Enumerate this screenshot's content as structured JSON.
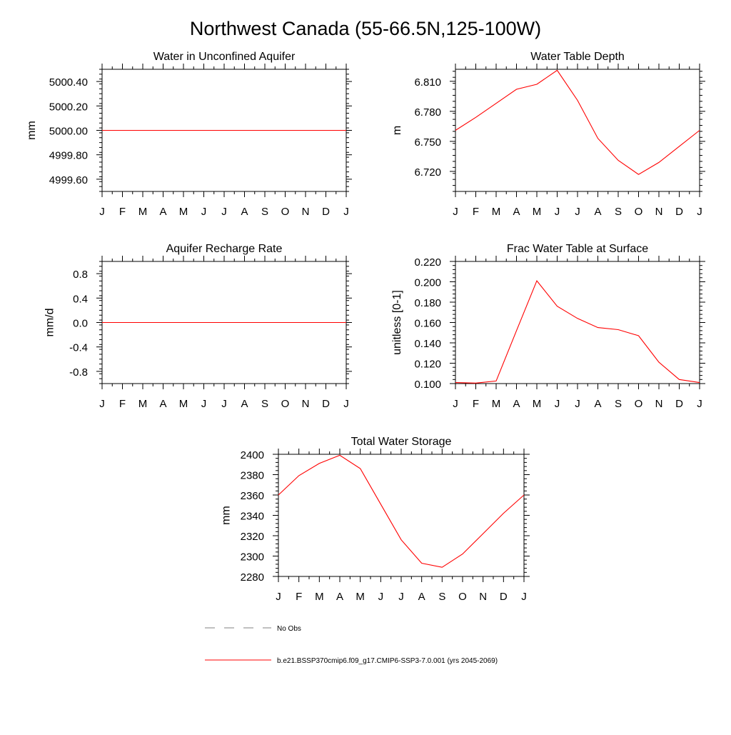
{
  "page_title": "Northwest Canada (55-66.5N,125-100W)",
  "months": [
    "J",
    "F",
    "M",
    "A",
    "M",
    "J",
    "J",
    "A",
    "S",
    "O",
    "N",
    "D",
    "J"
  ],
  "legend": {
    "obs_label": "No Obs",
    "obs_color": "#808080",
    "model_label": "b.e21.BSSP370cmip6.f09_g17.CMIP6-SSP3-7.0.001 (yrs 2045-2069)",
    "model_color": "#ff0000"
  },
  "chart_data": [
    {
      "type": "line",
      "title": "Water in Unconfined Aquifer",
      "ylabel": "mm",
      "ylim": [
        4999.5,
        5000.5
      ],
      "yticks": [
        4999.6,
        4999.8,
        5000.0,
        5000.2,
        5000.4
      ],
      "ytick_labels": [
        "4999.60",
        "4999.80",
        "5000.00",
        "5000.20",
        "5000.40"
      ],
      "series": [
        {
          "color": "#ff0000",
          "values": [
            5000,
            5000,
            5000,
            5000,
            5000,
            5000,
            5000,
            5000,
            5000,
            5000,
            5000,
            5000,
            5000
          ]
        }
      ]
    },
    {
      "type": "line",
      "title": "Water Table Depth",
      "ylabel": "m",
      "ylim": [
        6.7,
        6.822
      ],
      "yticks": [
        6.72,
        6.75,
        6.78,
        6.81
      ],
      "ytick_labels": [
        "6.720",
        "6.750",
        "6.780",
        "6.810"
      ],
      "series": [
        {
          "color": "#ff0000",
          "values": [
            6.761,
            6.774,
            6.788,
            6.802,
            6.807,
            6.821,
            6.791,
            6.753,
            6.731,
            6.717,
            6.729,
            6.745,
            6.761
          ]
        }
      ]
    },
    {
      "type": "line",
      "title": "Aquifer Recharge Rate",
      "ylabel": "mm/d",
      "ylim": [
        -1.0,
        1.0
      ],
      "yticks": [
        -0.8,
        -0.4,
        0.0,
        0.4,
        0.8
      ],
      "ytick_labels": [
        "-0.8",
        "-0.4",
        "0.0",
        "0.4",
        "0.8"
      ],
      "series": [
        {
          "color": "#ff0000",
          "values": [
            0,
            0,
            0,
            0,
            0,
            0,
            0,
            0,
            0,
            0,
            0,
            0,
            0
          ]
        }
      ]
    },
    {
      "type": "line",
      "title": "Frac Water Table at Surface",
      "ylabel": "unitless [0-1]",
      "ylim": [
        0.1,
        0.22
      ],
      "yticks": [
        0.1,
        0.12,
        0.14,
        0.16,
        0.18,
        0.2,
        0.22
      ],
      "ytick_labels": [
        "0.100",
        "0.120",
        "0.140",
        "0.160",
        "0.180",
        "0.200",
        "0.220"
      ],
      "series": [
        {
          "color": "#ff0000",
          "values": [
            0.101,
            0.1005,
            0.1025,
            0.152,
            0.201,
            0.176,
            0.164,
            0.155,
            0.153,
            0.147,
            0.121,
            0.104,
            0.101
          ]
        }
      ]
    },
    {
      "type": "line",
      "title": "Total Water Storage",
      "ylabel": "mm",
      "ylim": [
        2280,
        2400
      ],
      "yticks": [
        2280,
        2300,
        2320,
        2340,
        2360,
        2380,
        2400
      ],
      "ytick_labels": [
        "2280",
        "2300",
        "2320",
        "2340",
        "2360",
        "2380",
        "2400"
      ],
      "series": [
        {
          "color": "#ff0000",
          "values": [
            2360,
            2379,
            2391,
            2399,
            2386,
            2351,
            2316,
            2293,
            2289,
            2302,
            2322,
            2342,
            2360
          ]
        }
      ]
    }
  ]
}
